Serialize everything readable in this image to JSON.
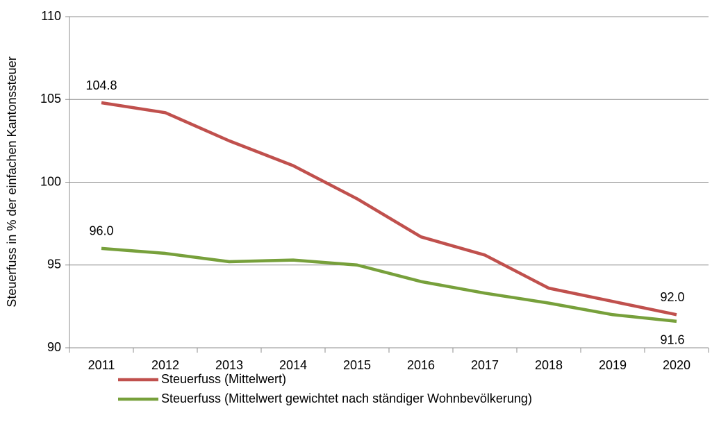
{
  "chart_data": {
    "type": "line",
    "y_label": "Steuerfuss in % der einfachen Kantonssteuer",
    "categories": [
      "2011",
      "2012",
      "2013",
      "2014",
      "2015",
      "2016",
      "2017",
      "2018",
      "2019",
      "2020"
    ],
    "series": [
      {
        "name": "Steuerfuss (Mittelwert)",
        "color": "#c0504d",
        "values": [
          104.8,
          104.2,
          102.5,
          101.0,
          99.0,
          96.7,
          95.6,
          93.6,
          92.8,
          92.0
        ],
        "value_labels": [
          "104.8",
          null,
          null,
          null,
          null,
          null,
          null,
          null,
          null,
          "92.0"
        ]
      },
      {
        "name": "Steuerfuss (Mittelwert gewichtet nach ständiger Wohnbevölkerung)",
        "color": "#77a03b",
        "values": [
          96.0,
          95.7,
          95.2,
          95.3,
          95.0,
          94.0,
          93.3,
          92.7,
          92.0,
          91.6
        ],
        "value_labels": [
          "96.0",
          null,
          null,
          null,
          null,
          null,
          null,
          null,
          null,
          "91.6"
        ]
      }
    ],
    "ylim": [
      90,
      110
    ],
    "yticks": [
      90,
      95,
      100,
      105,
      110
    ],
    "grid": true
  }
}
